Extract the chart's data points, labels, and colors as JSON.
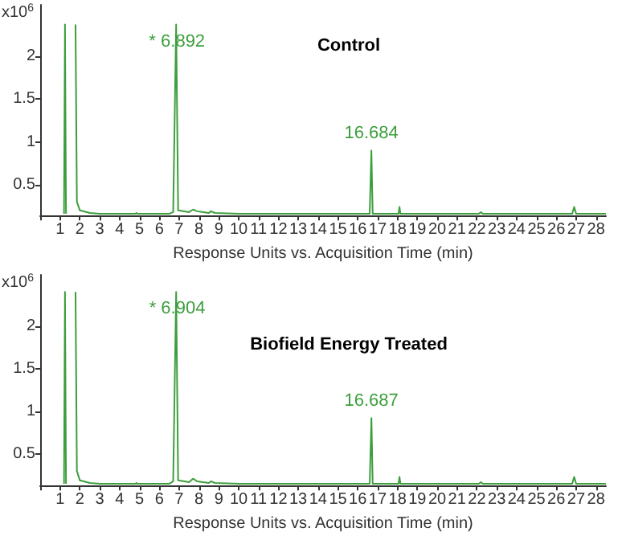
{
  "chart_data": [
    {
      "type": "line",
      "title": "Control",
      "xlabel": "Response Units vs. Acquisition Time (min)",
      "ylabel": "x10$^{6}$",
      "xlim": [
        0,
        28.5
      ],
      "ylim": [
        0.14,
        2.6
      ],
      "xticks": [
        {
          "value": 0,
          "label": null
        },
        1,
        2,
        3,
        4,
        5,
        6,
        7,
        8,
        9,
        10,
        11,
        12,
        13,
        14,
        15,
        16,
        17,
        18,
        19,
        20,
        21,
        22,
        23,
        24,
        25,
        26,
        27,
        28
      ],
      "yticks": [
        0.5,
        1,
        1.5,
        2
      ],
      "series": [
        {
          "color": "#3c9e3c",
          "x": [
            1.2,
            1.25,
            1.3,
            1.75,
            1.78,
            1.85,
            2.0,
            2.5,
            3,
            4.8,
            4.85,
            4.9,
            6.5,
            6.7,
            6.85,
            6.892,
            6.95,
            7.5,
            7.7,
            7.9,
            8.5,
            8.6,
            8.8,
            10,
            16.6,
            16.684,
            16.75,
            18.05,
            18.1,
            18.15,
            22.1,
            22.2,
            22.3,
            26.8,
            26.9,
            27,
            28.5
          ],
          "values": [
            0.16,
            2.37,
            0.16,
            null,
            2.37,
            0.3,
            0.2,
            0.17,
            0.16,
            0.16,
            0.17,
            0.16,
            0.16,
            0.18,
            2.37,
            2.37,
            0.2,
            0.18,
            0.21,
            0.19,
            0.17,
            0.19,
            0.17,
            0.16,
            0.16,
            0.9,
            0.16,
            0.16,
            0.24,
            0.16,
            0.16,
            0.18,
            0.16,
            0.16,
            0.24,
            0.16,
            0.16
          ]
        }
      ],
      "annotations": [
        {
          "text": "* 6.892",
          "x": 6.892,
          "y": 2.37
        },
        {
          "text": "16.684",
          "x": 16.684,
          "y": 0.9
        }
      ]
    },
    {
      "type": "line",
      "title": "Biofield Energy Treated",
      "xlabel": "Response Units vs. Acquisition Time (min)",
      "ylabel": "x10$^{6}$",
      "xlim": [
        0,
        28.5
      ],
      "ylim": [
        0.13,
        2.6
      ],
      "xticks": [
        {
          "value": 0,
          "label": null
        },
        1,
        2,
        3,
        4,
        5,
        6,
        7,
        8,
        9,
        10,
        11,
        12,
        13,
        14,
        15,
        16,
        17,
        18,
        19,
        20,
        21,
        22,
        23,
        24,
        25,
        26,
        27,
        28
      ],
      "yticks": [
        0.5,
        1,
        1.5,
        2
      ],
      "series": [
        {
          "color": "#3c9e3c",
          "x": [
            1.2,
            1.25,
            1.3,
            1.75,
            1.78,
            1.85,
            2.0,
            2.5,
            3,
            4.8,
            4.85,
            4.9,
            6.5,
            6.7,
            6.85,
            6.904,
            6.95,
            7.5,
            7.7,
            7.9,
            8.5,
            8.6,
            8.8,
            10,
            16.6,
            16.687,
            16.75,
            18.05,
            18.1,
            18.15,
            22.1,
            22.2,
            22.3,
            26.8,
            26.9,
            27,
            28.5
          ],
          "values": [
            0.15,
            2.4,
            0.15,
            null,
            2.4,
            0.3,
            0.19,
            0.16,
            0.15,
            0.15,
            0.16,
            0.15,
            0.15,
            0.18,
            2.4,
            2.4,
            0.19,
            0.17,
            0.21,
            0.18,
            0.16,
            0.18,
            0.16,
            0.15,
            0.15,
            0.92,
            0.15,
            0.15,
            0.23,
            0.15,
            0.15,
            0.17,
            0.15,
            0.15,
            0.23,
            0.15,
            0.15
          ]
        }
      ],
      "annotations": [
        {
          "text": "* 6.904",
          "x": 6.904,
          "y": 2.4
        },
        {
          "text": "16.687",
          "x": 16.687,
          "y": 0.92
        }
      ]
    }
  ]
}
